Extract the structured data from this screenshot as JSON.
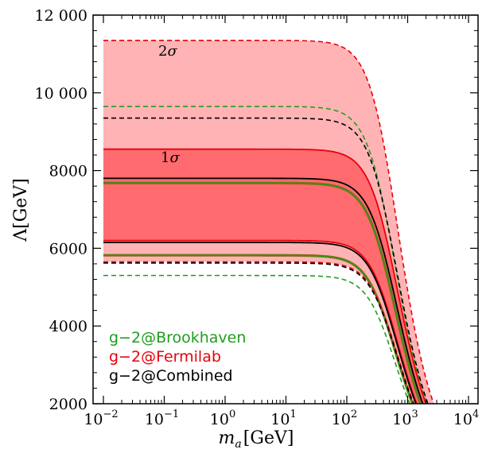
{
  "chart_data": {
    "type": "area",
    "x_scale": "log",
    "xlim_exponent": [
      -2,
      4
    ],
    "ylim": [
      2000,
      12000
    ],
    "x_ticks": [
      "10",
      "10",
      "10",
      "10",
      "10",
      "10",
      "10"
    ],
    "x_tick_exponents": [
      "−2",
      "−1",
      "0",
      "1",
      "2",
      "3",
      "4"
    ],
    "y_ticks": [
      {
        "value": 2000,
        "label": "2000"
      },
      {
        "value": 4000,
        "label": "4000"
      },
      {
        "value": 6000,
        "label": "6000"
      },
      {
        "value": 8000,
        "label": "8000"
      },
      {
        "value": 10000,
        "label": "10 000"
      },
      {
        "value": 12000,
        "label": "12 000"
      }
    ],
    "xlabel_symbol": "m",
    "xlabel_sub": "a",
    "xlabel_unit": "[GeV]",
    "ylabel": "Λ[GeV]",
    "band_labels": [
      {
        "prefix": "2",
        "sigma": "σ"
      },
      {
        "prefix": "1",
        "sigma": "σ"
      }
    ],
    "curve_shape": "Lambda(m) = L0 / sqrt(1 + (m/m0)^2)",
    "fermilab_1sigma": {
      "L0": [
        6200,
        8550
      ],
      "m0": 480
    },
    "fermilab_2sigma": {
      "L0": [
        5650,
        11350
      ],
      "m0": 480
    },
    "series": [
      {
        "name": "g−2@Brookhaven",
        "color": "#1e9e1e",
        "outer_dashed_L0": [
          5300,
          9650
        ],
        "inner_solid_L0": [
          5820,
          7680
        ],
        "m0": 440
      },
      {
        "name": "g−2@Fermilab",
        "color": "#e8000b",
        "outer_dashed_L0": [
          5650,
          11350
        ],
        "inner_solid_L0": [
          6200,
          8550
        ],
        "m0": 480
      },
      {
        "name": "g−2@Combined",
        "color": "#000000",
        "outer_dashed_L0": [
          5620,
          9350
        ],
        "inner_solid_L0": [
          6150,
          7800
        ],
        "m0": 470
      }
    ],
    "colors": {
      "band_2sigma": "#ffb3b5",
      "band_1sigma": "#ff6b6e",
      "brookhaven_inner": "#8a6a1a"
    },
    "legend_position": "bottom-left"
  }
}
